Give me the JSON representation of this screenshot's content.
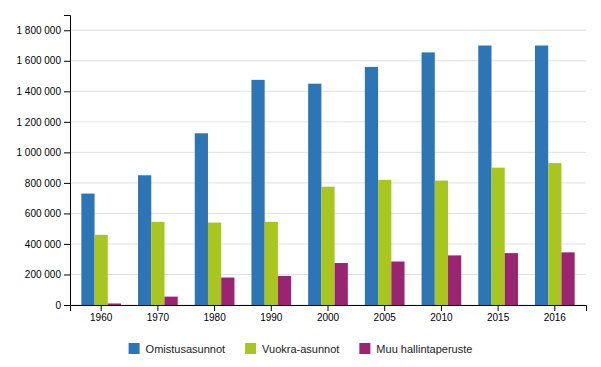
{
  "chart_data": {
    "type": "bar",
    "categories": [
      "1960",
      "1970",
      "1980",
      "1990",
      "2000",
      "2005",
      "2010",
      "2015",
      "2016"
    ],
    "series": [
      {
        "name": "Omistusasunnot",
        "color": "#2E75B6",
        "values": [
          730000,
          850000,
          1125000,
          1475000,
          1450000,
          1560000,
          1655000,
          1700000,
          1700000
        ]
      },
      {
        "name": "Vuokra-asunnot",
        "color": "#A9C520",
        "values": [
          460000,
          545000,
          540000,
          545000,
          775000,
          820000,
          815000,
          900000,
          930000
        ]
      },
      {
        "name": "Muu hallintaperuste",
        "color": "#9B2472",
        "values": [
          10000,
          55000,
          180000,
          190000,
          275000,
          285000,
          325000,
          340000,
          345000
        ]
      }
    ],
    "ylim": [
      0,
      1900000
    ],
    "yticks": [
      0,
      {
        "value": 200000,
        "label": "200 000"
      },
      {
        "value": 400000,
        "label": "400 000"
      },
      {
        "value": 600000,
        "label": "600 000"
      },
      {
        "value": 800000,
        "label": "800 000"
      },
      {
        "value": 1000000,
        "label": "1 000 000"
      },
      {
        "value": 1200000,
        "label": "1 200 000"
      },
      {
        "value": 1400000,
        "label": "1 400 000"
      },
      {
        "value": 1600000,
        "label": "1 600 000"
      },
      {
        "value": 1800000,
        "label": "1 800 000"
      }
    ],
    "grid": true,
    "legend": "bottom"
  }
}
